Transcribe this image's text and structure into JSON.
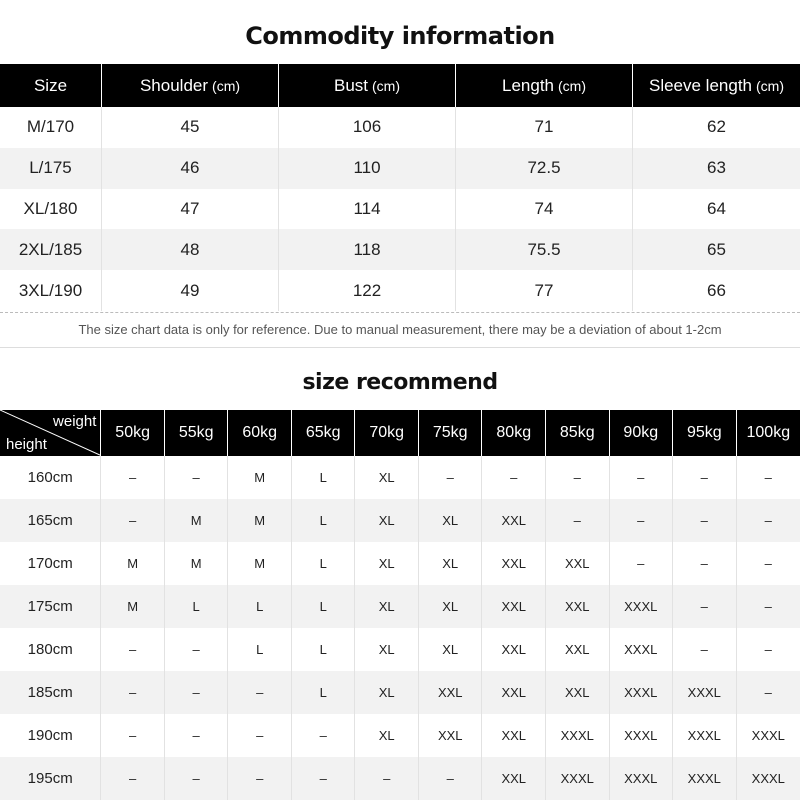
{
  "commodity": {
    "title": "Commodity information",
    "headers": [
      {
        "label": "Size",
        "unit": ""
      },
      {
        "label": "Shoulder",
        "unit": "(cm)"
      },
      {
        "label": "Bust",
        "unit": "(cm)"
      },
      {
        "label": "Length",
        "unit": "(cm)"
      },
      {
        "label": "Sleeve length",
        "unit": "(cm)"
      }
    ],
    "rows": [
      [
        "M/170",
        "45",
        "106",
        "71",
        "62"
      ],
      [
        "L/175",
        "46",
        "110",
        "72.5",
        "63"
      ],
      [
        "XL/180",
        "47",
        "114",
        "74",
        "64"
      ],
      [
        "2XL/185",
        "48",
        "118",
        "75.5",
        "65"
      ],
      [
        "3XL/190",
        "49",
        "122",
        "77",
        "66"
      ]
    ],
    "note": "The size chart data is only for reference. Due to manual measurement, there may be a deviation of about 1-2cm"
  },
  "recommend": {
    "title": "size recommend",
    "corner_weight": "weight",
    "corner_height": "height",
    "weights": [
      "50kg",
      "55kg",
      "60kg",
      "65kg",
      "70kg",
      "75kg",
      "80kg",
      "85kg",
      "90kg",
      "95kg",
      "100kg"
    ],
    "rows": [
      {
        "height": "160cm",
        "values": [
          "–",
          "–",
          "M",
          "L",
          "XL",
          "–",
          "–",
          "–",
          "–",
          "–",
          "–"
        ]
      },
      {
        "height": "165cm",
        "values": [
          "–",
          "M",
          "M",
          "L",
          "XL",
          "XL",
          "XXL",
          "–",
          "–",
          "–",
          "–"
        ]
      },
      {
        "height": "170cm",
        "values": [
          "M",
          "M",
          "M",
          "L",
          "XL",
          "XL",
          "XXL",
          "XXL",
          "–",
          "–",
          "–"
        ]
      },
      {
        "height": "175cm",
        "values": [
          "M",
          "L",
          "L",
          "L",
          "XL",
          "XL",
          "XXL",
          "XXL",
          "XXXL",
          "–",
          "–"
        ]
      },
      {
        "height": "180cm",
        "values": [
          "–",
          "–",
          "L",
          "L",
          "XL",
          "XL",
          "XXL",
          "XXL",
          "XXXL",
          "–",
          "–"
        ]
      },
      {
        "height": "185cm",
        "values": [
          "–",
          "–",
          "–",
          "L",
          "XL",
          "XXL",
          "XXL",
          "XXL",
          "XXXL",
          "XXXL",
          "–"
        ]
      },
      {
        "height": "190cm",
        "values": [
          "–",
          "–",
          "–",
          "–",
          "XL",
          "XXL",
          "XXL",
          "XXXL",
          "XXXL",
          "XXXL",
          "XXXL"
        ]
      },
      {
        "height": "195cm",
        "values": [
          "–",
          "–",
          "–",
          "–",
          "–",
          "–",
          "XXL",
          "XXXL",
          "XXXL",
          "XXXL",
          "XXXL"
        ]
      }
    ]
  }
}
